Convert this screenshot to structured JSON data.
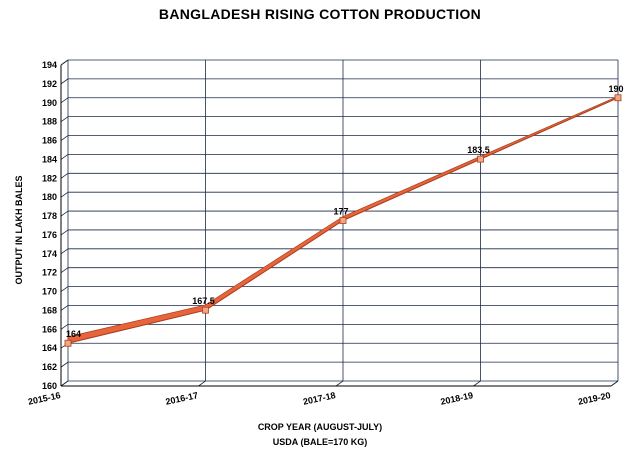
{
  "chart_data": {
    "type": "line",
    "title": "BANGLADESH RISING COTTON PRODUCTION",
    "xlabel": "CROP YEAR (AUGUST-JULY)",
    "xlabel_sub": "USDA (BALE=170 KG)",
    "ylabel": "OUTPUT IN LAKH BALES",
    "categories": [
      "2015-16",
      "2016-17",
      "2017-18",
      "2018-19",
      "2019-20"
    ],
    "series": [
      {
        "values": [
          164,
          167.5,
          177,
          183.5,
          190
        ],
        "labels": [
          "164",
          "167.5",
          "177",
          "183.5",
          "190"
        ]
      }
    ],
    "ylim": [
      160,
      194
    ],
    "ystep": 2,
    "grid": true,
    "line_color": "#E8643A",
    "marker_color": "#F4A582",
    "grid_color": "#1a2a4a"
  }
}
